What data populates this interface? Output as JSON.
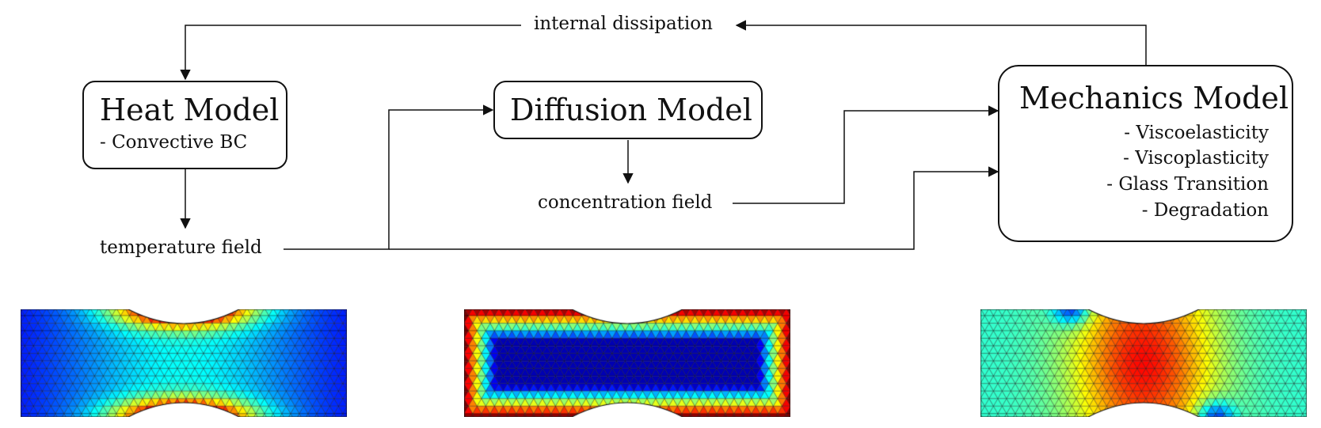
{
  "diagram": {
    "heat": {
      "title": "Heat Model",
      "items": [
        "- Convective BC"
      ]
    },
    "diffusion": {
      "title": "Diffusion Model"
    },
    "mechanics": {
      "title": "Mechanics Model",
      "items": [
        "-  Viscoelasticity",
        "-  Viscoplasticity",
        "-  Glass Transition",
        "-  Degradation"
      ]
    },
    "labels": {
      "internal_dissipation": "internal dissipation",
      "concentration_field": "concentration field",
      "temperature_field": "temperature field"
    }
  },
  "fields": {
    "temperature": {
      "colormap": "jet",
      "description_color_low": "#0a1a9e",
      "description_color_high": "#c21a0a"
    },
    "concentration": {
      "colormap": "jet"
    },
    "mechanics": {
      "colormap": "jet"
    }
  }
}
